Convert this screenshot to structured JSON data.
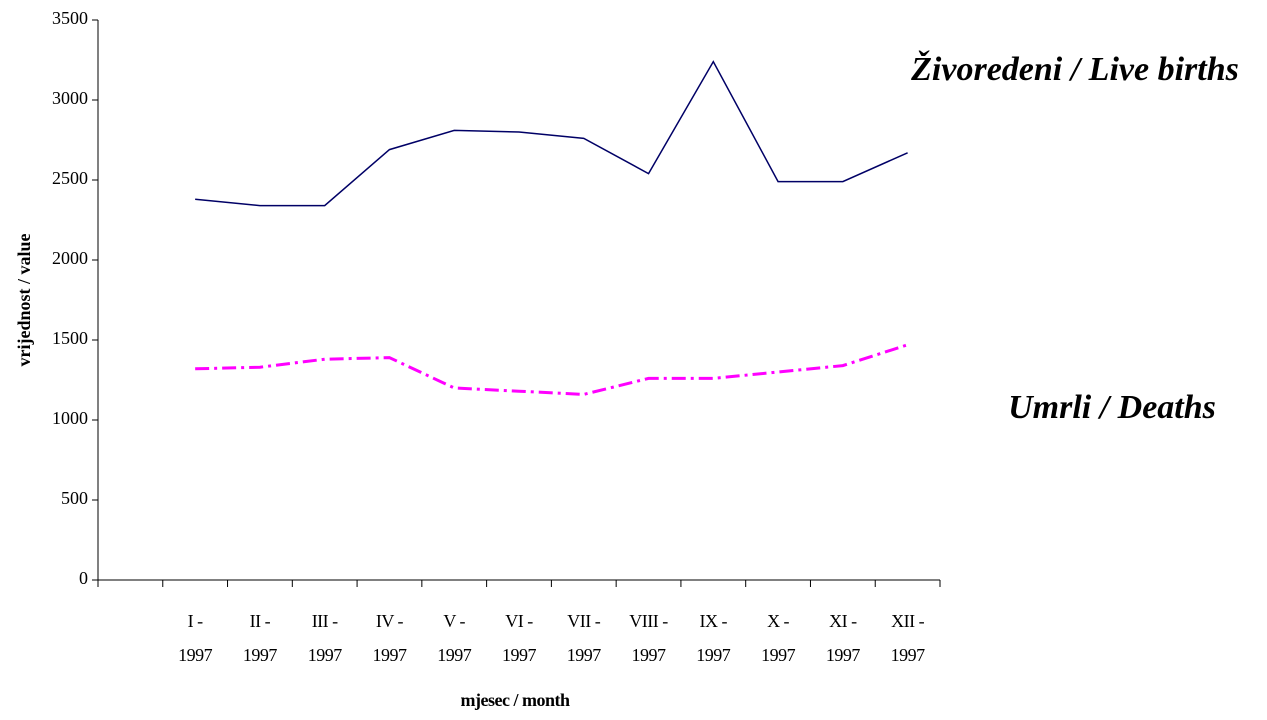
{
  "chart_data": {
    "type": "line",
    "categories": [
      null,
      "I - 1997",
      "II - 1997",
      "III - 1997",
      "IV - 1997",
      "V - 1997",
      "VI - 1997",
      "VII - 1997",
      "VIII - 1997",
      "IX - 1997",
      "X - 1997",
      "XI - 1997",
      "XII - 1997"
    ],
    "series": [
      {
        "name": "Živoredeni / Live births",
        "color": "#000066",
        "values": [
          null,
          2380,
          2340,
          2340,
          2690,
          2810,
          2800,
          2760,
          2540,
          3240,
          2490,
          2490,
          2670
        ]
      },
      {
        "name": "Umrli / Deaths",
        "color": "#ff00ff",
        "values": [
          null,
          1320,
          1330,
          1380,
          1390,
          1200,
          1180,
          1160,
          1260,
          1260,
          1300,
          1340,
          1470
        ]
      }
    ],
    "x_label": "mjesec / month",
    "y_label": "vrijednost / value",
    "ylim": [
      0,
      3500
    ],
    "yticks": [
      0,
      500,
      1000,
      1500,
      2000,
      2500,
      3000,
      3500
    ],
    "grid": false
  }
}
